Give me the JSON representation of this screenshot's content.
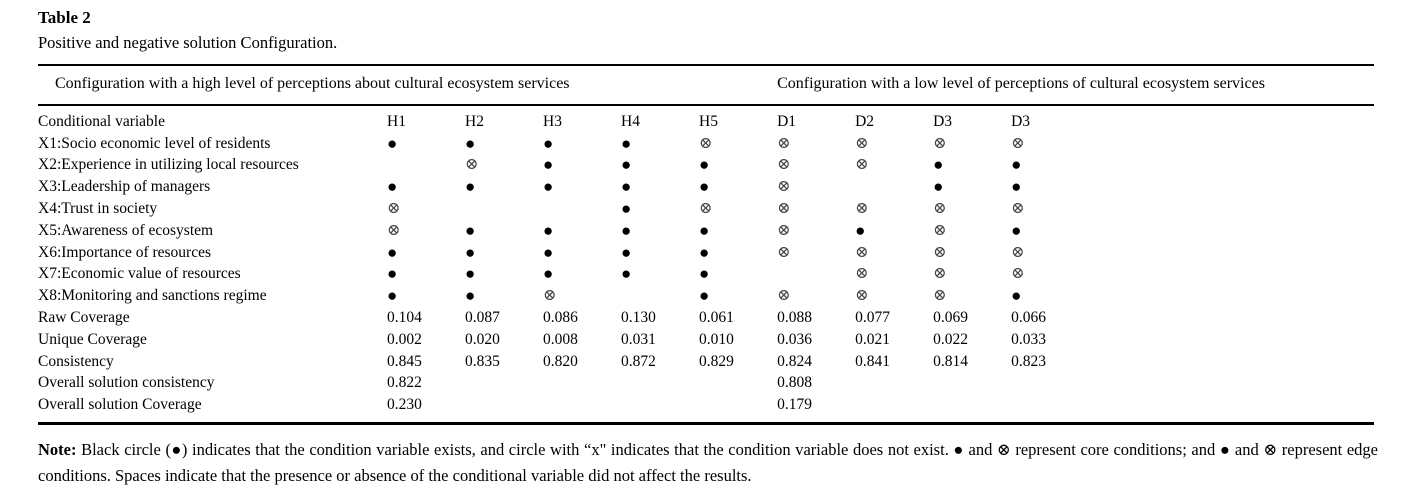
{
  "table_label": "Table 2",
  "caption": "Positive and negative solution Configuration.",
  "group_headers": {
    "high": "Configuration with a high level of perceptions about cultural ecosystem services",
    "low": "Configuration with a low level of perceptions of cultural ecosystem services"
  },
  "columns": [
    "Conditional variable",
    "H1",
    "H2",
    "H3",
    "H4",
    "H5",
    "D1",
    "D2",
    "D3",
    "D3"
  ],
  "symbols": {
    "filled_circle": "●",
    "crossed_circle": "⊗"
  },
  "rows": [
    {
      "label": "X1:Socio economic level of residents",
      "cells": [
        "●",
        "●",
        "●",
        "●",
        "⊗",
        "⊗",
        "⊗",
        "⊗",
        "⊗"
      ]
    },
    {
      "label": "X2:Experience in utilizing local resources",
      "cells": [
        "",
        "⊗",
        "●",
        "●",
        "●",
        "⊗",
        "⊗",
        "●",
        "●"
      ]
    },
    {
      "label": "X3:Leadership of managers",
      "cells": [
        "●",
        "●",
        "●",
        "●",
        "●",
        "⊗",
        "",
        "●",
        "●"
      ]
    },
    {
      "label": "X4:Trust in society",
      "cells": [
        "⊗",
        "",
        "",
        "●",
        "⊗",
        "⊗",
        "⊗",
        "⊗",
        "⊗"
      ]
    },
    {
      "label": "X5:Awareness of ecosystem",
      "cells": [
        "⊗",
        "●",
        "●",
        "●",
        "●",
        "⊗",
        "●",
        "⊗",
        "●"
      ]
    },
    {
      "label": "X6:Importance of resources",
      "cells": [
        "●",
        "●",
        "●",
        "●",
        "●",
        "⊗",
        "⊗",
        "⊗",
        "⊗"
      ]
    },
    {
      "label": "X7:Economic value of resources",
      "cells": [
        "●",
        "●",
        "●",
        "●",
        "●",
        "",
        "⊗",
        "⊗",
        "⊗"
      ]
    },
    {
      "label": "X8:Monitoring and sanctions regime",
      "cells": [
        "●",
        "●",
        "⊗",
        "",
        "●",
        "⊗",
        "⊗",
        "⊗",
        "●"
      ]
    },
    {
      "label": "Raw Coverage",
      "cells": [
        "0.104",
        "0.087",
        "0.086",
        "0.130",
        "0.061",
        "0.088",
        "0.077",
        "0.069",
        "0.066"
      ]
    },
    {
      "label": "Unique Coverage",
      "cells": [
        "0.002",
        "0.020",
        "0.008",
        "0.031",
        "0.010",
        "0.036",
        "0.021",
        "0.022",
        "0.033"
      ]
    },
    {
      "label": "Consistency",
      "cells": [
        "0.845",
        "0.835",
        "0.820",
        "0.872",
        "0.829",
        "0.824",
        "0.841",
        "0.814",
        "0.823"
      ]
    },
    {
      "label": "Overall solution consistency",
      "cells": [
        "0.822",
        "",
        "",
        "",
        "",
        "0.808",
        "",
        "",
        ""
      ]
    },
    {
      "label": "Overall solution Coverage",
      "cells": [
        "0.230",
        "",
        "",
        "",
        "",
        "0.179",
        "",
        "",
        ""
      ]
    }
  ],
  "note": {
    "prefix": "Note:",
    "text": " Black circle (●) indicates that the condition variable exists, and circle with “x\" indicates that the condition variable does not exist. ● and ⊗ represent core conditions; and ● and ⊗ represent edge conditions. Spaces indicate that the presence or absence of the conditional variable did not affect the results."
  }
}
